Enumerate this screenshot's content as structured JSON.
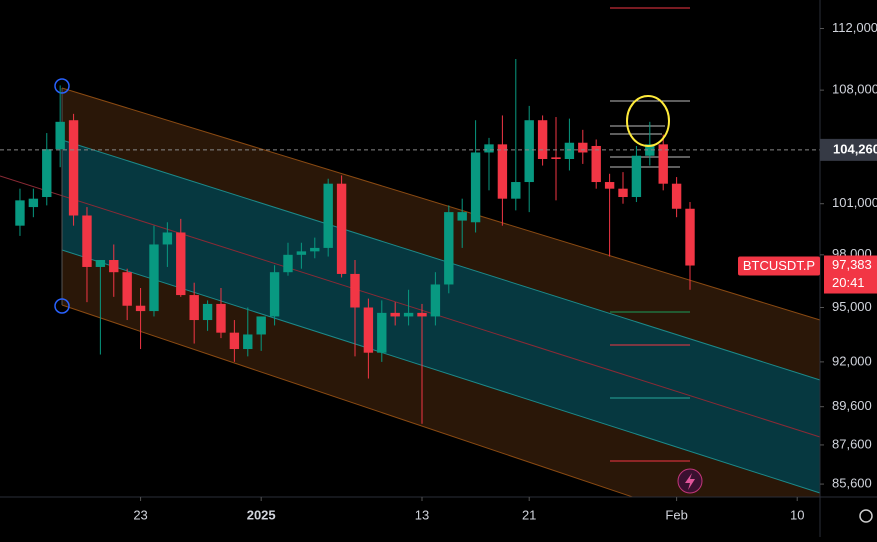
{
  "chart_data": {
    "type": "candlestick",
    "symbol": "BTCUSDT.P",
    "log_scale": true,
    "up_color": "#089981",
    "down_color": "#f23645",
    "x": [
      0,
      1,
      2,
      3,
      4,
      5,
      6,
      7,
      8,
      9,
      10,
      11,
      12,
      13,
      14,
      15,
      16,
      17,
      18,
      19,
      20,
      21,
      22,
      23,
      24,
      25,
      26,
      27,
      28,
      29,
      30,
      31,
      32,
      33,
      34,
      35,
      36,
      37,
      38,
      39,
      40,
      41,
      42,
      43,
      44,
      45,
      46,
      47,
      48,
      49,
      50
    ],
    "open": [
      99700,
      100800,
      101400,
      104300,
      106100,
      100300,
      97300,
      97700,
      97000,
      95100,
      94800,
      98600,
      99300,
      95700,
      94300,
      95200,
      93600,
      92700,
      93500,
      94500,
      97000,
      98000,
      98200,
      98400,
      102200,
      96900,
      95000,
      92500,
      94700,
      94500,
      94700,
      94500,
      96300,
      100000,
      99900,
      104100,
      104600,
      101300,
      102300,
      106100,
      103800,
      103700,
      104700,
      104500,
      102300,
      101900,
      101400,
      103900,
      104600,
      102200,
      100700
    ],
    "high": [
      101900,
      101900,
      105300,
      108300,
      106500,
      100800,
      97700,
      98600,
      97200,
      96100,
      99700,
      99900,
      100100,
      96400,
      95400,
      96100,
      94300,
      95000,
      94500,
      97400,
      98700,
      98700,
      99000,
      102500,
      102700,
      97700,
      95500,
      95400,
      95300,
      96000,
      95200,
      97000,
      100900,
      101300,
      106100,
      105000,
      106400,
      110000,
      107000,
      106400,
      106300,
      106200,
      105500,
      104900,
      102800,
      102900,
      104500,
      106000,
      105200,
      102600,
      101100
    ],
    "low": [
      99100,
      100200,
      100900,
      103200,
      99700,
      95300,
      92400,
      95600,
      94300,
      92700,
      94500,
      97300,
      95600,
      93000,
      93700,
      93300,
      92000,
      92300,
      92600,
      94000,
      96800,
      97200,
      97800,
      97900,
      96700,
      92300,
      91100,
      92000,
      94000,
      94000,
      88700,
      94000,
      95800,
      98400,
      99300,
      101800,
      99700,
      100600,
      100500,
      103300,
      101200,
      103000,
      103400,
      101900,
      97900,
      101000,
      101100,
      103300,
      101800,
      100200,
      96000
    ],
    "close": [
      101200,
      101300,
      104300,
      106000,
      100300,
      97300,
      97700,
      97000,
      95100,
      94800,
      98600,
      99300,
      95700,
      94300,
      95200,
      93600,
      92700,
      93500,
      94500,
      97000,
      98000,
      98200,
      98400,
      102200,
      96900,
      95000,
      92500,
      94700,
      94500,
      94700,
      94500,
      96300,
      100500,
      100500,
      104100,
      104600,
      101300,
      102300,
      106100,
      103700,
      103700,
      104700,
      104100,
      102300,
      101900,
      101400,
      103900,
      104600,
      102200,
      100700,
      97383
    ],
    "xlim": [
      -1.49,
      59.7
    ],
    "xticks": [
      {
        "value": 9,
        "label": "23"
      },
      {
        "value": 18,
        "label": "2025"
      },
      {
        "value": 30,
        "label": "13"
      },
      {
        "value": 38,
        "label": "21"
      },
      {
        "value": 49,
        "label": "Feb"
      },
      {
        "value": 58,
        "label": "10"
      }
    ],
    "ylim": [
      84950,
      113900
    ],
    "yticks": [
      {
        "value": 112000,
        "label": "112,000"
      },
      {
        "value": 108000,
        "label": "108,000"
      },
      {
        "value": 101000,
        "label": "101,000"
      },
      {
        "value": 98000,
        "label": "98,000"
      },
      {
        "value": 95000,
        "label": "95,000"
      },
      {
        "value": 92000,
        "label": "92,000"
      },
      {
        "value": 89600,
        "label": "89,600"
      },
      {
        "value": 87600,
        "label": "87,600"
      },
      {
        "value": 85600,
        "label": "85,600"
      }
    ],
    "last_price": {
      "value": 97383,
      "label": "97,383"
    },
    "countdown": "20:41",
    "crosshair_price": {
      "value": 104260,
      "label": "104,260"
    }
  }
}
